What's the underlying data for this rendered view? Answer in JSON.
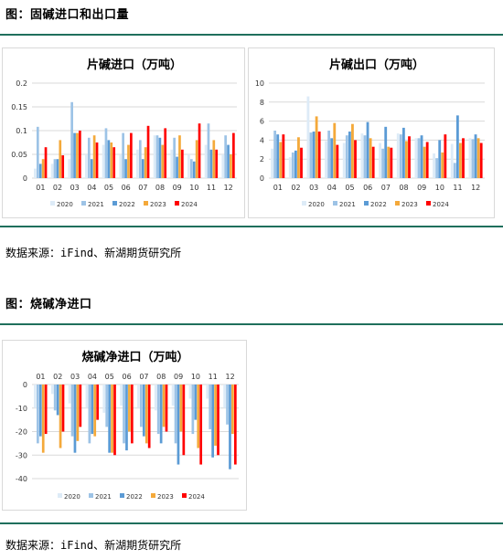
{
  "section1": {
    "title": "图：固碱进口和出口量",
    "source": "数据来源：iFind、新湖期货研究所"
  },
  "section2": {
    "title": "图：烧碱净进口",
    "source": "数据来源：iFind、新湖期货研究所"
  },
  "colors": {
    "2020": "#ddebf7",
    "2021": "#9dc3e6",
    "2022": "#5b9bd5",
    "2023": "#f4a93a",
    "2024": "#ff0000",
    "rule": "#1f6f5c",
    "grid": "#d9d9d9"
  },
  "chart_data": [
    {
      "type": "bar",
      "title": "片碱进口（万吨）",
      "categories": [
        "01",
        "02",
        "03",
        "04",
        "05",
        "06",
        "07",
        "08",
        "09",
        "10",
        "11",
        "12"
      ],
      "ylim": [
        0,
        0.2
      ],
      "yticks": [
        "0",
        "0.05",
        "0.1",
        "0.15",
        "0.2"
      ],
      "ytick_values": [
        0,
        0.05,
        0.1,
        0.15,
        0.2
      ],
      "legend_position": "bottom",
      "grid": true,
      "series": [
        {
          "name": "2020",
          "values": [
            0.02,
            0.03,
            0.04,
            0.05,
            0.07,
            0.05,
            0.06,
            0.09,
            0.06,
            0.05,
            0.07,
            0.05
          ]
        },
        {
          "name": "2021",
          "values": [
            0.108,
            0.04,
            0.16,
            0.085,
            0.105,
            0.095,
            0.08,
            0.09,
            0.085,
            0.04,
            0.115,
            0.09
          ]
        },
        {
          "name": "2022",
          "values": [
            0.03,
            0.04,
            0.095,
            0.04,
            0.08,
            0.04,
            0.04,
            0.085,
            0.045,
            0.035,
            0.06,
            0.07
          ]
        },
        {
          "name": "2023",
          "values": [
            0.04,
            0.08,
            0.095,
            0.09,
            0.075,
            0.07,
            0.065,
            0.07,
            0.09,
            0.08,
            0.08,
            0.05
          ]
        },
        {
          "name": "2024",
          "values": [
            0.065,
            0.048,
            0.1,
            0.075,
            0.065,
            0.095,
            0.11,
            0.105,
            0.06,
            0.115,
            0.06,
            0.095
          ]
        }
      ]
    },
    {
      "type": "bar",
      "title": "片碱出口（万吨）",
      "categories": [
        "01",
        "02",
        "03",
        "04",
        "05",
        "06",
        "07",
        "08",
        "09",
        "10",
        "11",
        "12"
      ],
      "ylim": [
        0,
        10
      ],
      "yticks": [
        "0",
        "2",
        "4",
        "6",
        "8",
        "10"
      ],
      "ytick_values": [
        0,
        2,
        4,
        6,
        8,
        10
      ],
      "legend_position": "bottom",
      "grid": true,
      "series": [
        {
          "name": "2020",
          "values": [
            3.1,
            2.2,
            8.6,
            3.9,
            3.7,
            4.7,
            3.7,
            4.7,
            4.2,
            2.6,
            3.6,
            4.2
          ]
        },
        {
          "name": "2021",
          "values": [
            5.0,
            2.7,
            4.8,
            5.0,
            4.5,
            4.5,
            3.1,
            4.6,
            4.2,
            2.1,
            1.6,
            4.1
          ]
        },
        {
          "name": "2022",
          "values": [
            4.6,
            2.9,
            4.9,
            4.2,
            4.9,
            5.9,
            5.4,
            5.3,
            4.5,
            4.0,
            6.6,
            4.6
          ]
        },
        {
          "name": "2023",
          "values": [
            3.8,
            4.3,
            6.5,
            5.8,
            5.7,
            4.2,
            3.3,
            3.9,
            3.3,
            2.7,
            3.7,
            4.2
          ]
        },
        {
          "name": "2024",
          "values": [
            4.6,
            3.2,
            4.9,
            3.5,
            4.0,
            3.3,
            3.2,
            4.4,
            3.8,
            4.6,
            4.2,
            3.7
          ]
        }
      ]
    },
    {
      "type": "bar",
      "title": "烧碱净进口（万吨）",
      "categories": [
        "01",
        "02",
        "03",
        "04",
        "05",
        "06",
        "07",
        "08",
        "09",
        "10",
        "11",
        "12"
      ],
      "ylim": [
        -40,
        0
      ],
      "yticks": [
        "0",
        "-10",
        "-20",
        "-30",
        "-40"
      ],
      "ytick_values": [
        0,
        -10,
        -20,
        -30,
        -40
      ],
      "legend_position": "bottom",
      "grid": true,
      "series": [
        {
          "name": "2020",
          "values": [
            -10,
            -4,
            -8,
            -10,
            -12,
            -9,
            -10,
            -11,
            -9,
            -6,
            -6,
            -10
          ]
        },
        {
          "name": "2021",
          "values": [
            -25,
            -11,
            -22,
            -25,
            -18,
            -25,
            -18,
            -21,
            -25,
            -21,
            -19,
            -17
          ]
        },
        {
          "name": "2022",
          "values": [
            -22,
            -13,
            -29,
            -21,
            -29,
            -28,
            -22,
            -25,
            -34,
            -15,
            -31,
            -36
          ]
        },
        {
          "name": "2023",
          "values": [
            -29,
            -27,
            -24,
            -22,
            -29,
            -20,
            -25,
            -18,
            -20,
            -27,
            -26,
            -21
          ]
        },
        {
          "name": "2024",
          "values": [
            -21,
            -20,
            -18,
            -15,
            -30,
            -25,
            -27,
            -20,
            -30,
            -34,
            -30,
            -34
          ]
        }
      ]
    }
  ]
}
